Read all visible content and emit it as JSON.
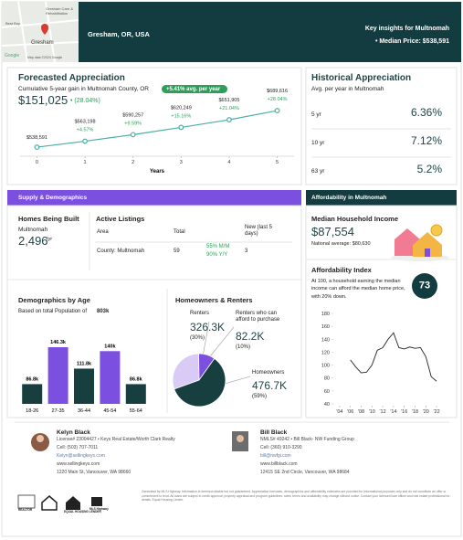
{
  "map": {
    "labels": [
      "Best Buy",
      "Gresham Care & Rehabilitation",
      "Gresham",
      "Google",
      "Map data ©2024 Google"
    ]
  },
  "header": {
    "location": "Gresham, OR, USA",
    "insights_title": "Key insights for Multnomah",
    "median_price": "• Median Price: $538,591"
  },
  "historical": {
    "title": "Historical Appreciation",
    "subtitle": "Avg. per year in Multnomah",
    "rows": [
      [
        "5 yr",
        "6.36%"
      ],
      [
        "10 yr",
        "7.12%"
      ],
      [
        "63 yr",
        "5.2%"
      ]
    ]
  },
  "sections": {
    "supply": "Supply & Demographics",
    "affordability": "Affordability in Multnomah"
  },
  "homes_built": {
    "title": "Homes Being Built",
    "area": "Multnomah",
    "value": "2,496",
    "unit": "/yr"
  },
  "listings": {
    "title": "Active Listings",
    "headers": [
      "Area",
      "Total",
      "New (last 5 days)"
    ],
    "row": {
      "area": "County: Multnomah",
      "total": "59",
      "mm": "55% M/M",
      "yy": "90% Y/Y",
      "new": "3"
    }
  },
  "income": {
    "title": "Median Household Income",
    "value": "$87,554",
    "national": "National average: $80,630"
  },
  "agents": [
    {
      "name": "Kelyn Black",
      "license": "License# 23004427 • Keys Real Estate/Worth Clark Realty",
      "cell": "Cell: (503) 707-7011",
      "email": "Kelyn@sellingkeys.com",
      "website": "www.sellingkeys.com",
      "address": "1220 Main St, Vancouver, WA 98660"
    },
    {
      "name": "Bill Black",
      "license": "NMLS# 49242 • Bill Black- NW Funding Group",
      "cell": "Cell: (360) 910-3290",
      "email": "bill@nwfgi.com",
      "website": "www.billblack.com",
      "address": "12415 SE 2nd Circle, Vancouver, WA 98684"
    }
  ],
  "footer": {
    "logos": [
      "REALTOR",
      "EQUAL HOUSING LENDER",
      "MLS Highway"
    ],
    "disclaimer": "Generated by MLS Highway. Information is deemed reliable but not guaranteed. Appreciation forecasts, demographics and affordability estimates are provided for informational purposes only and do not constitute an offer or commitment to lend. All loans are subject to credit approval, property appraisal and program guidelines; rates, terms and availability may change without notice. Contact your licensed loan officer and real estate professional for details. Equal Housing Lender."
  },
  "chart_data": [
    {
      "type": "line",
      "title": "Forecasted Appreciation",
      "subtitle": "Cumulative 5-year gain in Multnomah County, OR",
      "badge": "+5.41% avg. per year",
      "gain": "$151,025",
      "gain_pct": "• (28.04%)",
      "x_label": "Years",
      "x": [
        0,
        1,
        2,
        3,
        4,
        5
      ],
      "xlim": [
        -0.35,
        5.35
      ],
      "xticks": [
        0,
        1,
        2,
        3,
        4,
        5
      ],
      "ylim": [
        520000,
        720000
      ],
      "series": [
        {
          "color": "#48b0a5",
          "values": [
            538591,
            563198,
            590257,
            620249,
            651905,
            689616
          ],
          "value_labels": [
            "$538,591",
            "$563,198",
            "$590,257",
            "$620,249",
            "$651,905",
            "$689,616"
          ]
        }
      ],
      "change_labels": [
        null,
        "+4.57%",
        "+9.59%",
        "+15.16%",
        "+21.04%",
        "+28.04%"
      ]
    },
    {
      "type": "bar",
      "title": "Demographics by Age",
      "subtitle": "Based on total Population of",
      "population": "803k",
      "categories": [
        "18-26",
        "27-35",
        "36-44",
        "45-54",
        "55-64"
      ],
      "values": [
        86.8,
        146.3,
        111.8,
        140,
        86.8
      ],
      "value_labels": [
        "86.8k",
        "146.3k",
        "111.8k",
        "140k",
        "86.8k"
      ],
      "colors": [
        "#173f40",
        "#7b4fe0",
        "#173f40",
        "#7b4fe0",
        "#173f40"
      ],
      "ylim": [
        55,
        150
      ]
    },
    {
      "type": "pie",
      "title": "Homeowners & Renters",
      "categories": [
        "Renters",
        "Renters who can afford to purchase",
        "Homeowners"
      ],
      "values": [
        30,
        10,
        59
      ],
      "value_labels": [
        "(30%)",
        "(10%)",
        "(59%)"
      ],
      "count_labels": [
        "326.3K",
        "82.2K",
        "476.7K"
      ],
      "colors": [
        "#d9cbf5",
        "#7b4fe0",
        "#173f40"
      ]
    },
    {
      "type": "line",
      "title": "Affordability Index",
      "text": "At 100, a household earning the median income can afford the median home price, with 20% down.",
      "score": "73",
      "x": [
        2006,
        2007,
        2008,
        2009,
        2010,
        2011,
        2012,
        2013,
        2014,
        2015,
        2016,
        2017,
        2018,
        2019,
        2020,
        2021,
        2022
      ],
      "xlim": [
        2003,
        2023
      ],
      "xticks": [
        {
          "value": 2004,
          "label": "'04"
        },
        {
          "value": 2006,
          "label": "'06"
        },
        {
          "value": 2008,
          "label": "'08"
        },
        {
          "value": 2010,
          "label": "'10"
        },
        {
          "value": 2012,
          "label": "'12"
        },
        {
          "value": 2014,
          "label": "'14"
        },
        {
          "value": 2016,
          "label": "'16"
        },
        {
          "value": 2018,
          "label": "'18"
        },
        {
          "value": 2020,
          "label": "'20"
        },
        {
          "value": 2022,
          "label": "'22"
        }
      ],
      "ylim": [
        40,
        180
      ],
      "yticks": [
        40,
        60,
        80,
        100,
        120,
        140,
        160,
        180
      ],
      "series": [
        {
          "color": "#222222",
          "values": [
            108,
            97,
            88,
            89,
            100,
            123,
            127,
            140,
            150,
            127,
            125,
            128,
            126,
            127,
            113,
            82,
            75
          ]
        }
      ]
    }
  ]
}
